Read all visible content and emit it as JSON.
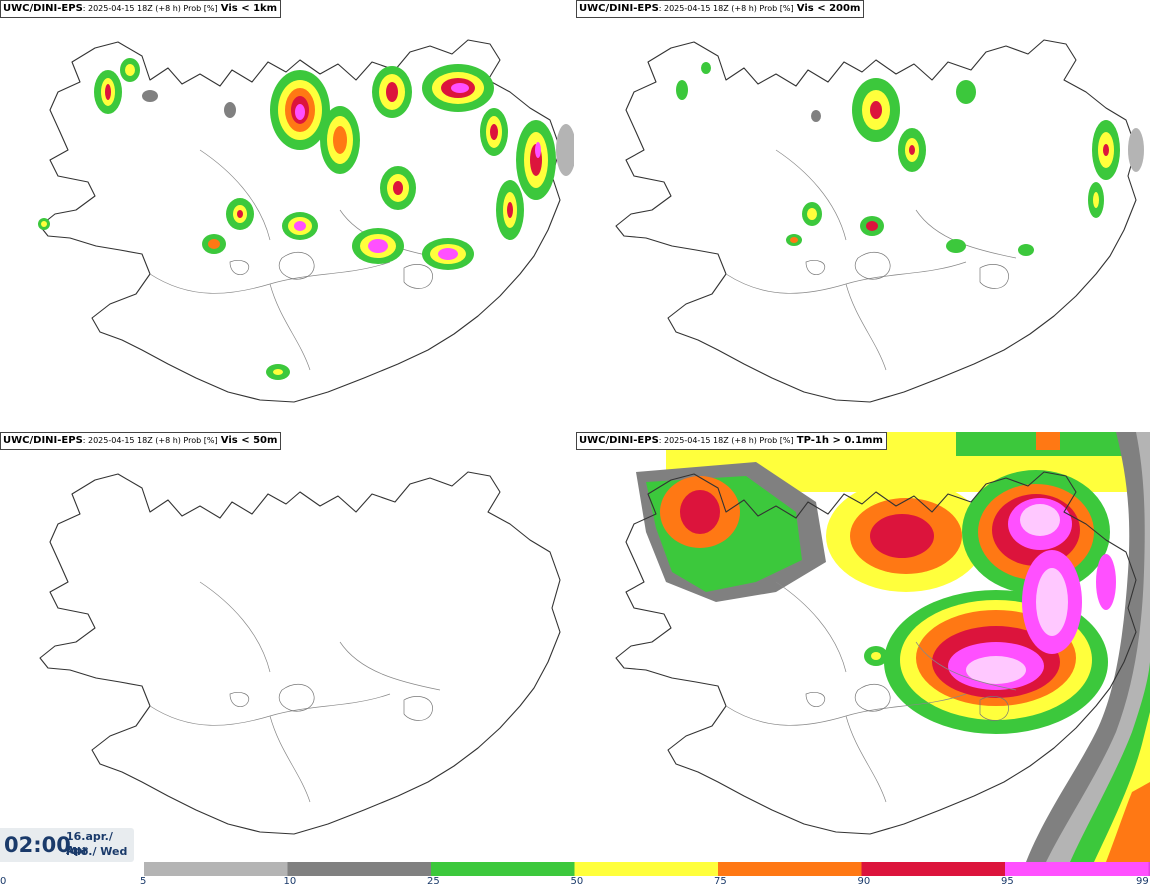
{
  "panels": [
    {
      "id": "tl",
      "source": "UWC/DINI-EPS",
      "meta": ": 2025-04-15 18Z (+8 h) Prob [%]",
      "threshold": "Vis < 1km"
    },
    {
      "id": "tr",
      "source": "UWC/DINI-EPS",
      "meta": ": 2025-04-15 18Z (+8 h) Prob [%]",
      "threshold": "Vis < 200m"
    },
    {
      "id": "bl",
      "source": "UWC/DINI-EPS",
      "meta": ": 2025-04-15 18Z (+8 h) Prob [%]",
      "threshold": "Vis < 50m"
    },
    {
      "id": "br",
      "source": "UWC/DINI-EPS",
      "meta": ": 2025-04-15 18Z (+8 h) Prob [%]",
      "threshold": "TP-1h > 0.1mm"
    }
  ],
  "valid_time": {
    "time": "02:00",
    "date_line": "16.apr./ Apr",
    "day_line": "Mið./ Wed"
  },
  "colorbar": {
    "ticks": [
      "0",
      "5",
      "10",
      "25",
      "50",
      "75",
      "90",
      "95",
      "99"
    ],
    "colors": [
      "#ffffff",
      "#b4b4b4",
      "#808080",
      "#3cc83c",
      "#ffff3c",
      "#ff7814",
      "#dc143c",
      "#ff50ff",
      "#ffc8ff"
    ]
  }
}
